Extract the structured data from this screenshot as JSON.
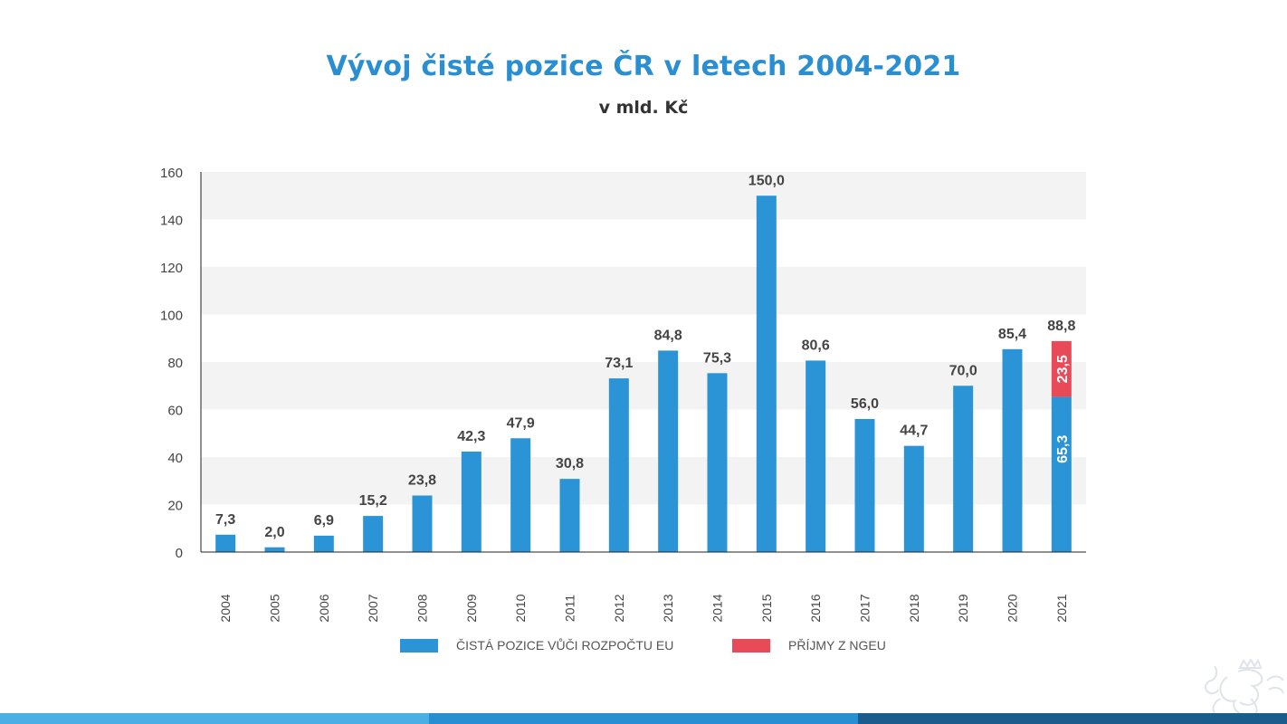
{
  "header": {
    "title": "Vývoj čisté pozice ČR v letech 2004-2021",
    "subtitle": "v mld. Kč"
  },
  "chart_data": {
    "type": "bar",
    "stacked": true,
    "categories": [
      "2004",
      "2005",
      "2006",
      "2007",
      "2008",
      "2009",
      "2010",
      "2011",
      "2012",
      "2013",
      "2014",
      "2015",
      "2016",
      "2017",
      "2018",
      "2019",
      "2020",
      "2021"
    ],
    "series": [
      {
        "name": "ČISTÁ POZICE VŮČI ROZPOČTU EU",
        "color": "#2a94d6",
        "values": [
          7.3,
          2.0,
          6.9,
          15.2,
          23.8,
          42.3,
          47.9,
          30.8,
          73.1,
          84.8,
          75.3,
          150.0,
          80.6,
          56.0,
          44.7,
          70.0,
          85.4,
          65.3
        ],
        "labels": [
          "7,3",
          "2,0",
          "6,9",
          "15,2",
          "23,8",
          "42,3",
          "47,9",
          "30,8",
          "73,1",
          "84,8",
          "75,3",
          "150,0",
          "80,6",
          "56,0",
          "44,7",
          "70,0",
          "85,4",
          "65,3"
        ]
      },
      {
        "name": "PŘÍJMY Z NGEU",
        "color": "#e84a58",
        "values": [
          0,
          0,
          0,
          0,
          0,
          0,
          0,
          0,
          0,
          0,
          0,
          0,
          0,
          0,
          0,
          0,
          0,
          23.5
        ],
        "labels": [
          "",
          "",
          "",
          "",
          "",
          "",
          "",
          "",
          "",
          "",
          "",
          "",
          "",
          "",
          "",
          "",
          "",
          "23,5"
        ]
      }
    ],
    "totals": [
      "7,3",
      "2,0",
      "6,9",
      "15,2",
      "23,8",
      "42,3",
      "47,9",
      "30,8",
      "73,1",
      "84,8",
      "75,3",
      "150,0",
      "80,6",
      "56,0",
      "44,7",
      "70,0",
      "85,4",
      "88,8"
    ],
    "ylim": [
      0,
      160
    ],
    "yticks": [
      "0",
      "20",
      "40",
      "60",
      "80",
      "100",
      "120",
      "140",
      "160"
    ],
    "grid": "alternating bands",
    "legend_position": "bottom"
  },
  "footer": {
    "colors": [
      "#4ab0e4",
      "#2a8ed2",
      "#1a5c8c"
    ]
  }
}
